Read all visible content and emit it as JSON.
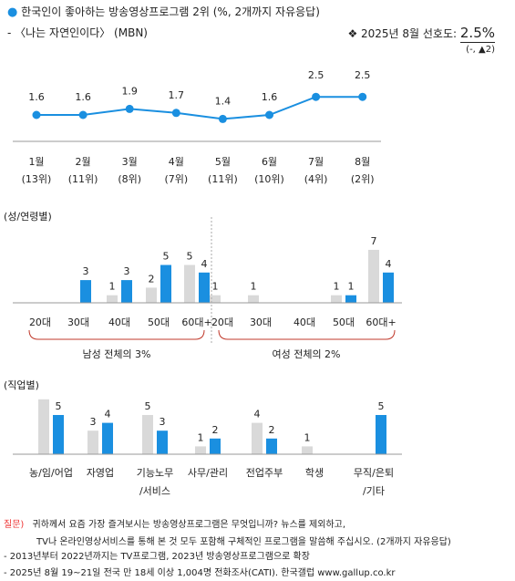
{
  "header": {
    "bullet": "●",
    "title": "한국인이 좋아하는 방송영상프로그램 2위 (%, 2개까지 자유응답)",
    "subtitle": "- 〈나는 자연인이다〉 (MBN)",
    "pref_label": "❖  2025년 8월 선호도:",
    "pref_value": "2.5%",
    "change": "(-, ▲2)"
  },
  "colors": {
    "line": "#1a8fe0",
    "male_female_prev": "#d9d9d9",
    "current": "#1a8fe0",
    "bracket": "#c0392b",
    "question": "#e33333"
  },
  "chart_data": [
    {
      "type": "line",
      "categories": [
        "1월",
        "2월",
        "3월",
        "4월",
        "5월",
        "6월",
        "7월",
        "8월"
      ],
      "ranks": [
        "(13위)",
        "(11위)",
        "(8위)",
        "(7위)",
        "(11위)",
        "(10위)",
        "(4위)",
        "(2위)"
      ],
      "values": [
        1.6,
        1.6,
        1.9,
        1.7,
        1.4,
        1.6,
        2.5,
        2.5
      ]
    },
    {
      "type": "bar",
      "section_label": "(성/연령별)",
      "categories": [
        "20대",
        "30대",
        "40대",
        "50대",
        "60대+",
        "20대",
        "30대",
        "40대",
        "50대",
        "60대+"
      ],
      "groups": [
        "남성 전체의 3%",
        "여성 전체의 2%"
      ],
      "series": [
        {
          "values": [
            0,
            0,
            1,
            2,
            5,
            1,
            1,
            0,
            1,
            7
          ]
        },
        {
          "values": [
            0,
            3,
            3,
            5,
            4,
            0,
            0,
            0,
            1,
            4
          ]
        }
      ],
      "labels_prev": [
        "",
        "",
        "1",
        "2",
        "5",
        "1",
        "1",
        "",
        "1",
        "7"
      ],
      "labels_curr": [
        "",
        "3",
        "3",
        "5",
        "4",
        "",
        "",
        "",
        "1",
        "4"
      ]
    },
    {
      "type": "bar",
      "section_label": "(직업별)",
      "categories": [
        "농/임/어업",
        "자영업",
        "기능노무",
        "사무/관리",
        "전업주부",
        "학생",
        "무직/은퇴"
      ],
      "categories_line2": [
        "",
        "",
        "/서비스",
        "",
        "",
        "",
        "/기타"
      ],
      "series": [
        {
          "values": [
            7,
            3,
            5,
            1,
            4,
            1,
            0
          ]
        },
        {
          "values": [
            5,
            4,
            3,
            2,
            2,
            0,
            5
          ]
        }
      ],
      "labels_prev": [
        "",
        "3",
        "5",
        "1",
        "4",
        "1",
        ""
      ],
      "labels_curr": [
        "5",
        "4",
        "3",
        "2",
        "2",
        "",
        "5"
      ]
    }
  ],
  "footer": {
    "question_tag": "질문)",
    "question_line1": "귀하께서 요즘 가장 즐겨보시는 방송영상프로그램은 무엇입니까? 뉴스를 제외하고,",
    "question_line2": "TV나 온라인영상서비스를 통해 본 것 모두 포함해 구체적인 프로그램을 말씀해 주십시오. (2개까지 자유응답)",
    "note1": "- 2013년부터 2022년까지는 TV프로그램, 2023년 방송영상프로그램으로 확장",
    "note2": "- 2025년 8월 19~21일 전국 만 18세 이상 1,004명 전화조사(CATI). 한국갤럽 www.gallup.co.kr"
  }
}
